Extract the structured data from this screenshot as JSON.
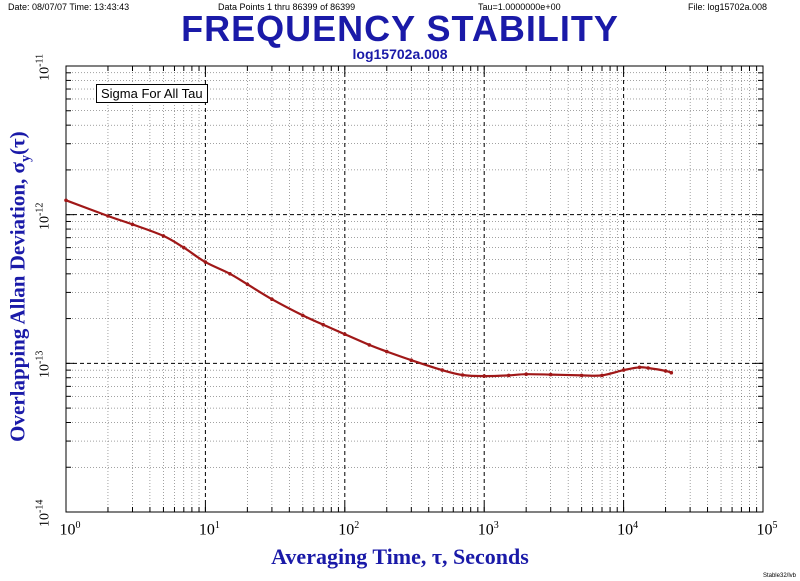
{
  "header": {
    "date": "Date: 08/07/07  Time: 13:43:43",
    "data_points": "Data Points 1 thru 86399 of 86399",
    "tau": "Tau=1.0000000e+00",
    "file": "File: log15702a.008"
  },
  "footer": "Stable32/lvb",
  "chart_data": {
    "type": "line",
    "title": "FREQUENCY STABILITY",
    "subtitle": "log15702a.008",
    "legend_box": "Sigma For All Tau",
    "xlabel": "Averaging Time, τ, Seconds",
    "ylabel": "Overlapping Allan Deviation, σy(τ)",
    "x_scale": "log",
    "y_scale": "log",
    "xlim": [
      1,
      100000
    ],
    "ylim": [
      1e-14,
      1e-11
    ],
    "grid": true,
    "x_ticks": [
      {
        "value": 1,
        "base": "10",
        "exp": "0"
      },
      {
        "value": 10,
        "base": "10",
        "exp": "1"
      },
      {
        "value": 100,
        "base": "10",
        "exp": "2"
      },
      {
        "value": 1000,
        "base": "10",
        "exp": "3"
      },
      {
        "value": 10000,
        "base": "10",
        "exp": "4"
      },
      {
        "value": 100000,
        "base": "10",
        "exp": "5"
      }
    ],
    "y_ticks": [
      {
        "value": 1e-14,
        "base": "10",
        "exp": "-14"
      },
      {
        "value": 1e-13,
        "base": "10",
        "exp": "-13"
      },
      {
        "value": 1e-12,
        "base": "10",
        "exp": "-12"
      },
      {
        "value": 1e-11,
        "base": "10",
        "exp": "-11"
      }
    ],
    "line_color": "#a01818",
    "series": [
      {
        "x": [
          1,
          2,
          3,
          5,
          7,
          10,
          15,
          20,
          30,
          50,
          70,
          100,
          150,
          200,
          300,
          500,
          700,
          1000,
          1500,
          2000,
          3000,
          5000,
          7000,
          10000,
          13000,
          15000,
          20000,
          22000
        ],
        "y": [
          1.25e-12,
          9.8e-13,
          8.6e-13,
          7.2e-13,
          6e-13,
          4.8e-13,
          4e-13,
          3.4e-13,
          2.7e-13,
          2.1e-13,
          1.82e-13,
          1.57e-13,
          1.33e-13,
          1.2e-13,
          1.05e-13,
          9e-14,
          8.35e-14,
          8.2e-14,
          8.3e-14,
          8.45e-14,
          8.4e-14,
          8.3e-14,
          8.3e-14,
          9e-14,
          9.4e-14,
          9.3e-14,
          8.9e-14,
          8.65e-14
        ]
      }
    ]
  }
}
